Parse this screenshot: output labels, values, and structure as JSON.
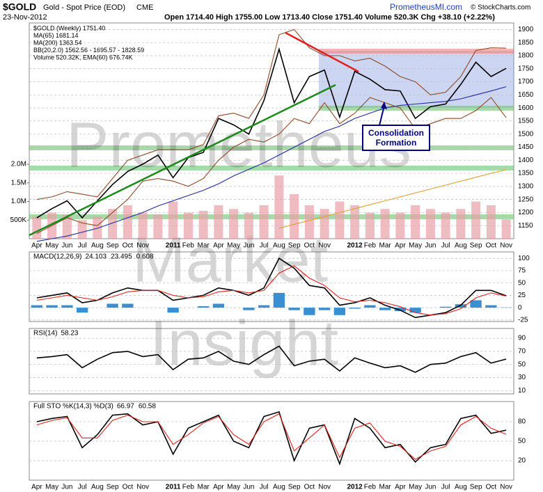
{
  "header": {
    "symbol": "$GOLD",
    "name": "Gold - Spot Price (EOD)",
    "exchange": "CME",
    "date": "23-Nov-2012",
    "quote": "Open 1714.40 High 1755.00 Low 1713.40 Close 1751.40 Volume 520.3K Chg +38.10 (+2.22%)",
    "site": "PrometheusMI.com",
    "credit": "© StockCharts.com"
  },
  "watermark": [
    "Prometheus",
    "Market",
    "Insight"
  ],
  "chart_data": [
    {
      "type": "line",
      "legend": "top-left",
      "grid": true,
      "categories": [
        "Apr",
        "May",
        "Jun",
        "Jul",
        "Aug",
        "Sep",
        "Oct",
        "Nov",
        null,
        "2011",
        "Feb",
        "Mar",
        "Apr",
        "May",
        "Jun",
        "Jul",
        "Aug",
        "Sep",
        "Oct",
        "Nov",
        null,
        "2012",
        "Feb",
        "Mar",
        "Apr",
        "May",
        "Jun",
        "Jul",
        "Aug",
        "Sep",
        "Oct",
        "Nov"
      ],
      "ylim": [
        1100,
        1925
      ],
      "yticks": [
        1150,
        1200,
        1250,
        1300,
        1350,
        1400,
        1450,
        1500,
        1550,
        1600,
        1650,
        1700,
        1750,
        1800,
        1850,
        1900
      ],
      "y2lim": [
        0,
        5800000
      ],
      "y2ticks": [
        {
          "value": 500000,
          "label": "500K"
        },
        {
          "value": 1000000,
          "label": "1.0M"
        },
        {
          "value": 1500000,
          "label": "1.5M"
        },
        {
          "value": 2000000,
          "label": "2.0M"
        }
      ],
      "annotations": [
        "Consolidation",
        "Formation"
      ],
      "series": [
        {
          "name": "$GOLD (Weekly) 1751.40",
          "color": "#000000",
          "values": [
            1180,
            1215,
            1245,
            1180,
            1245,
            1307,
            1357,
            1385,
            1420,
            1333,
            1410,
            1430,
            1560,
            1535,
            1500,
            1628,
            1825,
            1620,
            1720,
            1745,
            1565,
            1740,
            1710,
            1670,
            1665,
            1560,
            1605,
            1615,
            1690,
            1775,
            1720,
            1751.4
          ]
        },
        {
          "name": "MA(65) 1681.14",
          "color": "#1f2a9c",
          "values": [
            1090,
            1100,
            1110,
            1125,
            1140,
            1160,
            1180,
            1200,
            1225,
            1245,
            1265,
            1285,
            1310,
            1340,
            1365,
            1390,
            1420,
            1450,
            1480,
            1510,
            1530,
            1560,
            1580,
            1600,
            1610,
            1615,
            1620,
            1625,
            1635,
            1650,
            1665,
            1681.14
          ]
        },
        {
          "name": "MA(200) 1363.54",
          "color": "#e0a030",
          "values": [
            null,
            null,
            null,
            null,
            null,
            null,
            null,
            null,
            null,
            null,
            null,
            null,
            null,
            null,
            null,
            null,
            1140,
            1155,
            1170,
            1185,
            1200,
            1215,
            1230,
            1245,
            1260,
            1275,
            1290,
            1305,
            1320,
            1335,
            1350,
            1363.54
          ]
        },
        {
          "name": "BB(20,2.0) 1562.56 - 1695.57 - 1828.59",
          "color": "#8b4a2b",
          "values": [
            1250,
            1260,
            1280,
            1270,
            1260,
            1330,
            1400,
            1420,
            1440,
            1440,
            1440,
            1460,
            1570,
            1580,
            1560,
            1650,
            1880,
            1900,
            1830,
            1800,
            1800,
            1780,
            1790,
            1760,
            1720,
            1700,
            1650,
            1660,
            1720,
            1820,
            1830,
            1828.59
          ]
        },
        {
          "color": "#8b4a2b",
          "values": [
            1120,
            1150,
            1180,
            1160,
            1150,
            1200,
            1250,
            1320,
            1330,
            1320,
            1300,
            1330,
            1400,
            1450,
            1480,
            1470,
            1500,
            1560,
            1540,
            1620,
            1540,
            1580,
            1640,
            1620,
            1600,
            1520,
            1540,
            1560,
            1560,
            1590,
            1640,
            1562.56
          ]
        },
        {
          "name": "Volume 520.32K, EMA(60) 676.74K",
          "type": "bar",
          "axis": "y2",
          "color": "#e8a0a8",
          "values": [
            600000,
            700000,
            650000,
            500000,
            600000,
            800000,
            900000,
            700000,
            650000,
            1000000,
            700000,
            750000,
            900000,
            800000,
            700000,
            900000,
            1700000,
            1200000,
            900000,
            800000,
            1000000,
            900000,
            700000,
            800000,
            700000,
            900000,
            800000,
            700000,
            800000,
            1000000,
            900000,
            520320
          ]
        }
      ]
    },
    {
      "type": "line",
      "label": "MACD(12,26,9)",
      "grid": true,
      "ylim": [
        -28,
        113
      ],
      "yticks": [
        100,
        75,
        50,
        25,
        0,
        -25
      ],
      "series": [
        {
          "name": "24.103",
          "color": "#000000",
          "values": [
            20,
            25,
            30,
            10,
            15,
            30,
            40,
            35,
            35,
            15,
            20,
            25,
            40,
            35,
            25,
            40,
            100,
            80,
            45,
            40,
            5,
            10,
            20,
            5,
            -5,
            -20,
            -15,
            -10,
            5,
            35,
            35,
            24.103
          ]
        },
        {
          "name": "23.495",
          "color": "#e02020",
          "values": [
            15,
            20,
            25,
            20,
            15,
            22,
            32,
            35,
            35,
            25,
            20,
            22,
            32,
            35,
            30,
            35,
            70,
            85,
            60,
            45,
            20,
            12,
            15,
            10,
            2,
            -10,
            -15,
            -12,
            -2,
            20,
            30,
            23.495
          ]
        },
        {
          "name": "0.608",
          "type": "bar",
          "color": "#3a8fd0",
          "values": [
            5,
            5,
            5,
            -10,
            0,
            8,
            8,
            0,
            0,
            -10,
            0,
            3,
            8,
            0,
            -5,
            5,
            30,
            -5,
            -15,
            -5,
            -15,
            -2,
            5,
            -5,
            -7,
            -10,
            0,
            2,
            7,
            15,
            5,
            0.608
          ]
        }
      ]
    },
    {
      "type": "line",
      "label": "RSI(14)",
      "grid": true,
      "ylim": [
        5,
        105
      ],
      "yticks": [
        90,
        70,
        50,
        30,
        10
      ],
      "series": [
        {
          "name": "58.23",
          "color": "#000000",
          "values": [
            60,
            62,
            65,
            45,
            58,
            68,
            70,
            62,
            65,
            42,
            58,
            60,
            70,
            55,
            50,
            65,
            78,
            48,
            55,
            58,
            40,
            60,
            52,
            45,
            48,
            38,
            50,
            52,
            62,
            68,
            52,
            58.23
          ]
        }
      ]
    },
    {
      "type": "line",
      "label": "Full STO %K(14,3) %D(3)",
      "grid": true,
      "ylim": [
        -10,
        111
      ],
      "yticks": [
        80,
        50,
        20
      ],
      "categories": [
        "Apr",
        "May",
        "Jun",
        "Jul",
        "Aug",
        "Sep",
        "Oct",
        "Nov",
        null,
        "2011",
        "Feb",
        "Mar",
        "Apr",
        "May",
        "Jun",
        "Jul",
        "Aug",
        "Sep",
        "Oct",
        "Nov",
        null,
        "2012",
        "Feb",
        "Mar",
        "Apr",
        "May",
        "Jun",
        "Jul",
        "Aug",
        "Sep",
        "Oct",
        "Nov"
      ],
      "series": [
        {
          "name": "66.97",
          "color": "#000000",
          "values": [
            80,
            85,
            88,
            40,
            60,
            90,
            92,
            75,
            80,
            30,
            70,
            80,
            90,
            50,
            40,
            88,
            95,
            20,
            70,
            75,
            15,
            85,
            70,
            40,
            45,
            18,
            40,
            45,
            85,
            90,
            62,
            66.97
          ]
        },
        {
          "name": "60.58",
          "color": "#e02020",
          "values": [
            75,
            82,
            86,
            55,
            55,
            82,
            90,
            80,
            80,
            45,
            60,
            78,
            88,
            60,
            45,
            80,
            92,
            35,
            55,
            75,
            25,
            70,
            78,
            50,
            42,
            22,
            35,
            42,
            75,
            88,
            70,
            60.58
          ]
        }
      ]
    }
  ]
}
